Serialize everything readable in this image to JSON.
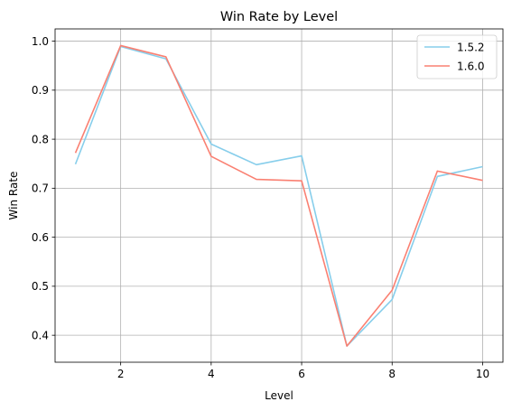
{
  "chart_data": {
    "type": "line",
    "title": "Win Rate by Level",
    "xlabel": "Level",
    "ylabel": "Win Rate",
    "xlim": [
      0.55,
      10.45
    ],
    "ylim": [
      0.345,
      1.025
    ],
    "xticks": [
      2,
      4,
      6,
      8,
      10
    ],
    "yticks": [
      0.4,
      0.5,
      0.6,
      0.7,
      0.8,
      0.9,
      1.0
    ],
    "ytick_labels": [
      "0.4",
      "0.5",
      "0.6",
      "0.7",
      "0.8",
      "0.9",
      "1.0"
    ],
    "grid": true,
    "legend_position": "top-right",
    "x": [
      1,
      2,
      3,
      4,
      5,
      6,
      7,
      8,
      9,
      10
    ],
    "series": [
      {
        "name": "1.5.2",
        "color": "#87ceeb",
        "values": [
          0.749,
          0.989,
          0.964,
          0.79,
          0.748,
          0.766,
          0.378,
          0.473,
          0.724,
          0.744
        ]
      },
      {
        "name": "1.6.0",
        "color": "#fa8072",
        "values": [
          0.772,
          0.991,
          0.968,
          0.765,
          0.718,
          0.715,
          0.378,
          0.492,
          0.735,
          0.716
        ]
      }
    ]
  }
}
